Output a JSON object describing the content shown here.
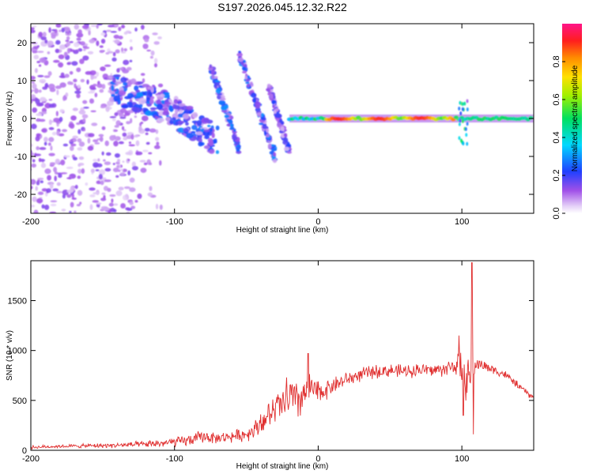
{
  "title": "S197.2026.045.12.32.R22",
  "chart_data": [
    {
      "type": "heatmap",
      "name": "spectrogram",
      "xlabel": "Height of straight line (km)",
      "ylabel": "Frequency (Hz)",
      "xlim": [
        -200,
        150
      ],
      "ylim": [
        -25,
        25
      ],
      "xticks": [
        -200,
        -100,
        0,
        100
      ],
      "yticks": [
        -20,
        -10,
        0,
        10,
        20
      ],
      "features": [
        {
          "name": "scatter-noise",
          "x_range": [
            -200,
            -130
          ],
          "y_range": [
            -25,
            25
          ],
          "amplitude": 0.12
        },
        {
          "name": "arc-band-1",
          "x_range": [
            -145,
            -70
          ],
          "y_range": [
            -7,
            12
          ],
          "amplitude": 0.25
        },
        {
          "name": "streak-1",
          "x_range": [
            -75,
            -55
          ],
          "y_range": [
            -8,
            14
          ],
          "amplitude": 0.25
        },
        {
          "name": "streak-2",
          "x_range": [
            -55,
            -30
          ],
          "y_range": [
            -10,
            17
          ],
          "amplitude": 0.25
        },
        {
          "name": "streak-3",
          "x_range": [
            -35,
            -20
          ],
          "y_range": [
            -9,
            9
          ],
          "amplitude": 0.2
        },
        {
          "name": "carrier-line",
          "x_range": [
            -20,
            150
          ],
          "y": 0,
          "amplitude_peak": 0.95
        },
        {
          "name": "spike-100km",
          "x_range": [
            98,
            104
          ],
          "y_range": [
            -7,
            5
          ],
          "amplitude": 0.5
        }
      ],
      "colorbar": {
        "label": "Normalized spectral amplitude",
        "range": [
          0.0,
          1.0
        ],
        "ticks": [
          "0.0",
          "0.2",
          "0.4",
          "0.6",
          "0.8"
        ],
        "tick_values": [
          0.0,
          0.2,
          0.4,
          0.6,
          0.8
        ]
      }
    },
    {
      "type": "line",
      "name": "snr",
      "xlabel": "Height of straight line (km)",
      "ylabel": "SNR (10 * v/v)",
      "xlim": [
        -200,
        150
      ],
      "ylim": [
        0,
        1900
      ],
      "xticks": [
        -200,
        -100,
        0,
        100
      ],
      "yticks": [
        0,
        500,
        1000,
        1500
      ],
      "series": [
        {
          "name": "SNR",
          "color": "#e03030",
          "x": [
            -200,
            -180,
            -160,
            -140,
            -120,
            -100,
            -90,
            -80,
            -70,
            -60,
            -50,
            -40,
            -35,
            -30,
            -25,
            -20,
            -15,
            -10,
            -5,
            0,
            10,
            20,
            30,
            40,
            50,
            60,
            70,
            80,
            90,
            95,
            100,
            105,
            110,
            115,
            120,
            130,
            140,
            150
          ],
          "y": [
            30,
            40,
            45,
            50,
            60,
            80,
            100,
            140,
            120,
            140,
            160,
            260,
            340,
            400,
            450,
            520,
            480,
            560,
            620,
            570,
            650,
            710,
            760,
            790,
            800,
            790,
            810,
            800,
            820,
            860,
            800,
            720,
            870,
            850,
            820,
            760,
            640,
            520
          ],
          "amplitude": [
            20,
            20,
            25,
            30,
            40,
            60,
            70,
            80,
            60,
            70,
            80,
            120,
            150,
            180,
            220,
            260,
            250,
            230,
            180,
            150,
            100,
            90,
            80,
            80,
            80,
            80,
            80,
            80,
            90,
            120,
            230,
            320,
            80,
            70,
            60,
            50,
            40,
            40
          ],
          "spikes": [
            {
              "x": -40,
              "y": 360
            },
            {
              "x": -28,
              "y": 560
            },
            {
              "x": -22,
              "y": 730
            },
            {
              "x": -18,
              "y": 660
            },
            {
              "x": -7,
              "y": 970
            },
            {
              "x": 98,
              "y": 1150
            },
            {
              "x": 101,
              "y": 350
            },
            {
              "x": 107,
              "y": 1880
            },
            {
              "x": 108,
              "y": 160
            }
          ]
        }
      ]
    }
  ]
}
